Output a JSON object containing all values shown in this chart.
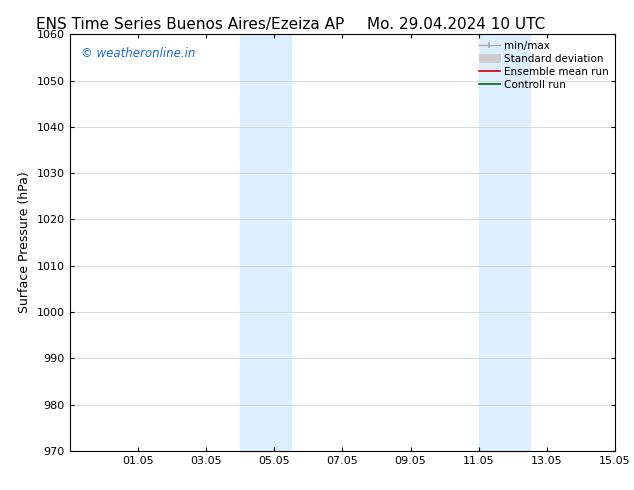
{
  "title_left": "ENS Time Series Buenos Aires/Ezeiza AP",
  "title_right": "Mo. 29.04.2024 10 UTC",
  "ylabel": "Surface Pressure (hPa)",
  "ylim": [
    970,
    1060
  ],
  "yticks": [
    970,
    980,
    990,
    1000,
    1010,
    1020,
    1030,
    1040,
    1050,
    1060
  ],
  "xtick_positions": [
    2,
    4,
    6,
    8,
    10,
    12,
    14,
    16
  ],
  "xtick_labels": [
    "01.05",
    "03.05",
    "05.05",
    "07.05",
    "09.05",
    "11.05",
    "13.05",
    "15.05"
  ],
  "xlim": [
    0,
    16
  ],
  "shaded_regions": [
    {
      "xmin": 5.0,
      "xmax": 6.5
    },
    {
      "xmin": 12.0,
      "xmax": 13.5
    }
  ],
  "shade_color": "#ddeeff",
  "background_color": "#ffffff",
  "watermark_text": "© weatheronline.in",
  "watermark_color": "#1a6bc4",
  "legend_entries": [
    {
      "label": "min/max",
      "color": "#aaaaaa",
      "lw": 1.0
    },
    {
      "label": "Standard deviation",
      "color": "#cccccc",
      "lw": 5
    },
    {
      "label": "Ensemble mean run",
      "color": "#cc0000",
      "lw": 1.2
    },
    {
      "label": "Controll run",
      "color": "#006600",
      "lw": 1.2
    }
  ],
  "title_fontsize": 11,
  "axis_fontsize": 9,
  "tick_fontsize": 8,
  "legend_fontsize": 7.5
}
